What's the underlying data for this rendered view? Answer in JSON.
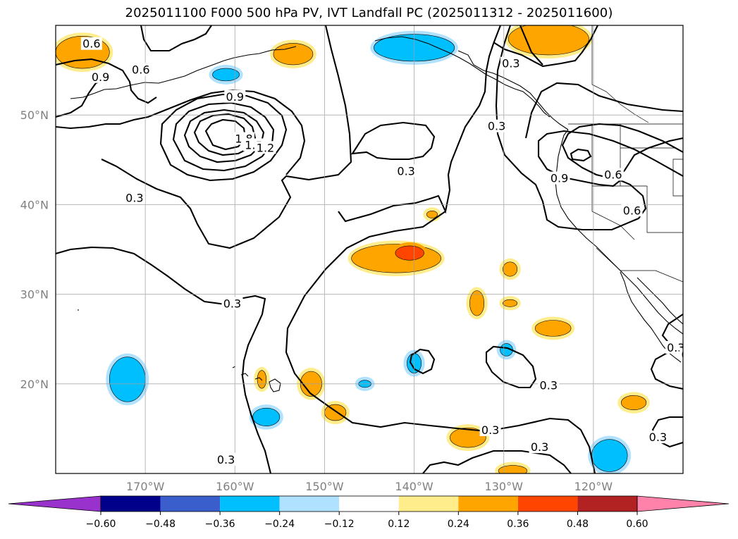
{
  "title": "2025011100 F000 500 hPa PV, IVT Landfall PC (2025011312 - 2025011600)",
  "map": {
    "lon_range": [
      -180,
      -110
    ],
    "lat_range": [
      10,
      60
    ],
    "grid": true,
    "lat_ticks": [
      {
        "value": 50,
        "label": "50°N"
      },
      {
        "value": 40,
        "label": "40°N"
      },
      {
        "value": 30,
        "label": "30°N"
      },
      {
        "value": 20,
        "label": "20°N"
      }
    ],
    "lon_ticks": [
      {
        "value": -170,
        "label": "170°W"
      },
      {
        "value": -160,
        "label": "160°W"
      },
      {
        "value": -150,
        "label": "150°W"
      },
      {
        "value": -140,
        "label": "140°W"
      },
      {
        "value": -130,
        "label": "130°W"
      },
      {
        "value": -120,
        "label": "120°W"
      }
    ]
  },
  "contours": {
    "variable": "500 hPa PV",
    "labels": [
      {
        "text": "0.6",
        "lon": -176.0,
        "lat": 57.9
      },
      {
        "text": "0.6",
        "lon": -170.5,
        "lat": 55.0
      },
      {
        "text": "0.9",
        "lon": -175.0,
        "lat": 54.2
      },
      {
        "text": "0.9",
        "lon": -160.0,
        "lat": 52.0
      },
      {
        "text": "1.8",
        "lon": -159.0,
        "lat": 47.3
      },
      {
        "text": "1.5",
        "lon": -157.9,
        "lat": 46.6
      },
      {
        "text": "1.2",
        "lon": -156.6,
        "lat": 46.3
      },
      {
        "text": "0.3",
        "lon": -171.2,
        "lat": 40.7
      },
      {
        "text": "0.3",
        "lon": -140.9,
        "lat": 43.7
      },
      {
        "text": "0.3",
        "lon": -129.2,
        "lat": 55.7
      },
      {
        "text": "0.3",
        "lon": -130.8,
        "lat": 48.7
      },
      {
        "text": "0.9",
        "lon": -123.8,
        "lat": 42.9
      },
      {
        "text": "0.6",
        "lon": -117.8,
        "lat": 43.3
      },
      {
        "text": "0.6",
        "lon": -115.7,
        "lat": 39.3
      },
      {
        "text": "0.3",
        "lon": -160.3,
        "lat": 28.9
      },
      {
        "text": "0.3",
        "lon": -125.0,
        "lat": 19.8
      },
      {
        "text": "0.3",
        "lon": -131.5,
        "lat": 14.8
      },
      {
        "text": "0.3",
        "lon": -126.0,
        "lat": 12.9
      },
      {
        "text": "0.3",
        "lon": -161.0,
        "lat": 11.5
      },
      {
        "text": "0.3",
        "lon": -110.8,
        "lat": 24.0
      },
      {
        "text": "0.3",
        "lon": -109.2,
        "lat": 23.2
      },
      {
        "text": "0.3",
        "lon": -112.8,
        "lat": 14.0
      }
    ]
  },
  "colorbar": {
    "variable": "IVT Landfall PC",
    "extend": "both",
    "colors": [
      "#9932cc",
      "#00008b",
      "#3a5fcd",
      "#00bfff",
      "#b0e2ff",
      "#ffffff",
      "#ffec8b",
      "#ffa500",
      "#ff4500",
      "#b22222",
      "#ff82ab"
    ],
    "levels": [
      -0.6,
      -0.48,
      -0.36,
      -0.24,
      -0.12,
      0.12,
      0.24,
      0.36,
      0.48,
      0.6
    ],
    "tick_labels": [
      "−0.60",
      "−0.48",
      "−0.36",
      "−0.24",
      "−0.12",
      "0.12",
      "0.24",
      "0.36",
      "0.48",
      "0.60"
    ]
  },
  "shaded_regions": [
    {
      "color": "#ffa500",
      "edge": "#ffec8b",
      "lon": -177,
      "lat": 57.0,
      "rlon": 3.0,
      "rlat": 1.8
    },
    {
      "color": "#ffa500",
      "edge": "#ffec8b",
      "lon": -153.5,
      "lat": 56.8,
      "rlon": 2.2,
      "rlat": 1.2
    },
    {
      "color": "#00bfff",
      "edge": "#b0e2ff",
      "lon": -161.0,
      "lat": 54.5,
      "rlon": 1.5,
      "rlat": 0.7
    },
    {
      "color": "#00bfff",
      "edge": "#b0e2ff",
      "lon": -140.0,
      "lat": 57.5,
      "rlon": 4.5,
      "rlat": 1.5
    },
    {
      "color": "#ffa500",
      "edge": "#ffec8b",
      "lon": -125.0,
      "lat": 58.5,
      "rlon": 4.5,
      "rlat": 1.8
    },
    {
      "color": "#ffa500",
      "edge": "#ffec8b",
      "lon": -142.0,
      "lat": 34.0,
      "rlon": 5.0,
      "rlat": 1.6
    },
    {
      "color": "#ff4500",
      "edge": "#ffa500",
      "lon": -140.5,
      "lat": 34.6,
      "rlon": 1.6,
      "rlat": 0.8
    },
    {
      "color": "#ffa500",
      "edge": "#ffec8b",
      "lon": -138.0,
      "lat": 38.9,
      "rlon": 0.6,
      "rlat": 0.4
    },
    {
      "color": "#ffa500",
      "edge": "#ffec8b",
      "lon": -133.0,
      "lat": 29.0,
      "rlon": 0.8,
      "rlat": 1.4
    },
    {
      "color": "#ffa500",
      "edge": "#ffec8b",
      "lon": -129.3,
      "lat": 32.8,
      "rlon": 0.8,
      "rlat": 0.8
    },
    {
      "color": "#ffa500",
      "edge": "#ffec8b",
      "lon": -129.3,
      "lat": 29.0,
      "rlon": 0.8,
      "rlat": 0.4
    },
    {
      "color": "#ffa500",
      "edge": "#ffec8b",
      "lon": -124.5,
      "lat": 26.2,
      "rlon": 2.0,
      "rlat": 0.9
    },
    {
      "color": "#00bfff",
      "edge": "#b0e2ff",
      "lon": -172.0,
      "lat": 20.5,
      "rlon": 2.0,
      "rlat": 2.5
    },
    {
      "color": "#ffa500",
      "edge": "#ffec8b",
      "lon": -157.0,
      "lat": 20.5,
      "rlon": 0.5,
      "rlat": 1.0
    },
    {
      "color": "#ffa500",
      "edge": "#ffec8b",
      "lon": -151.5,
      "lat": 20.0,
      "rlon": 1.2,
      "rlat": 1.4
    },
    {
      "color": "#00bfff",
      "edge": "#b0e2ff",
      "lon": -145.5,
      "lat": 20.0,
      "rlon": 0.7,
      "rlat": 0.4
    },
    {
      "color": "#00bfff",
      "edge": "#b0e2ff",
      "lon": -156.5,
      "lat": 16.3,
      "rlon": 1.5,
      "rlat": 1.0
    },
    {
      "color": "#ffa500",
      "edge": "#ffec8b",
      "lon": -148.8,
      "lat": 16.8,
      "rlon": 1.2,
      "rlat": 0.9
    },
    {
      "color": "#00bfff",
      "edge": "#b0e2ff",
      "lon": -140.0,
      "lat": 22.3,
      "rlon": 0.8,
      "rlat": 1.1
    },
    {
      "color": "#00bfff",
      "edge": "#b0e2ff",
      "lon": -129.7,
      "lat": 23.8,
      "rlon": 0.7,
      "rlat": 0.7
    },
    {
      "color": "#ffa500",
      "edge": "#ffec8b",
      "lon": -134.0,
      "lat": 14.0,
      "rlon": 2.0,
      "rlat": 1.1
    },
    {
      "color": "#ffa500",
      "edge": "#ffec8b",
      "lon": -115.5,
      "lat": 17.9,
      "rlon": 1.4,
      "rlat": 0.8
    },
    {
      "color": "#00bfff",
      "edge": "#b0e2ff",
      "lon": -118.2,
      "lat": 12.0,
      "rlon": 2.0,
      "rlat": 1.8
    },
    {
      "color": "#ffa500",
      "edge": "#ffec8b",
      "lon": -129.0,
      "lat": 10.3,
      "rlon": 1.6,
      "rlat": 0.6
    }
  ]
}
